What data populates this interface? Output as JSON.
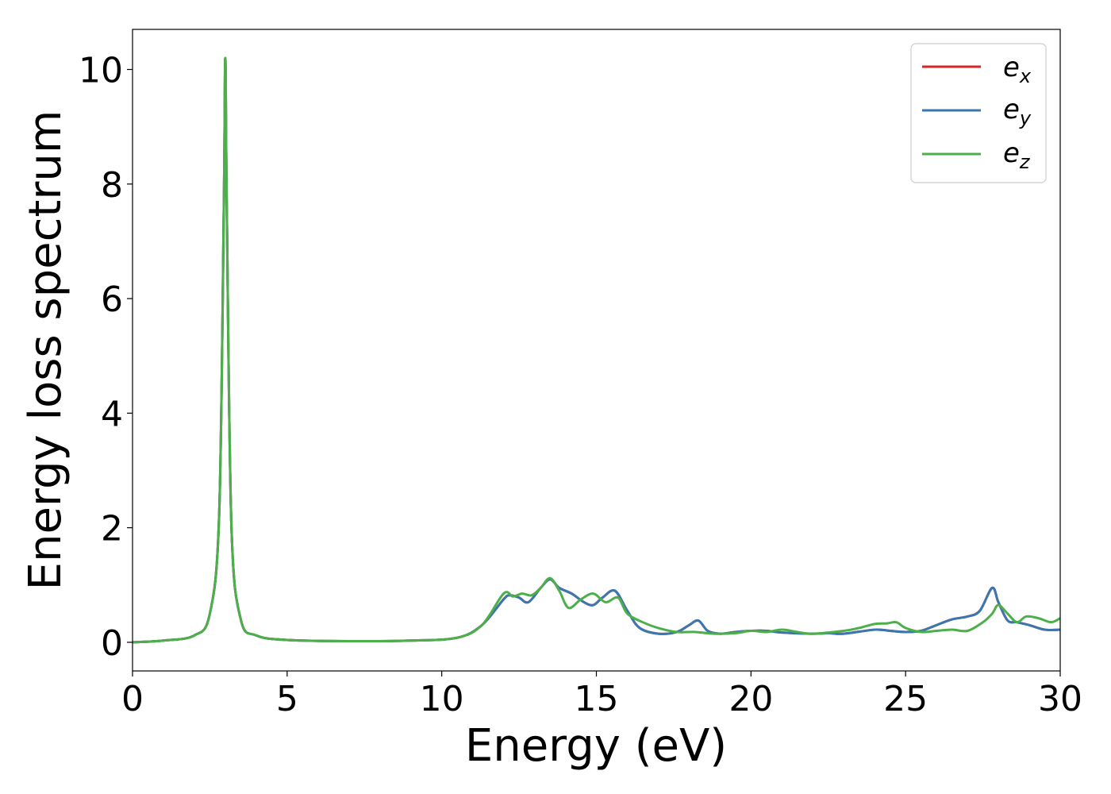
{
  "chart_data": {
    "type": "line",
    "title": "",
    "xlabel": "Energy (eV)",
    "ylabel": "Energy loss spectrum",
    "xlim": [
      0,
      30
    ],
    "ylim": [
      -0.5,
      10.7
    ],
    "xticks": [
      0,
      5,
      10,
      15,
      20,
      25,
      30
    ],
    "yticks": [
      0,
      2,
      4,
      6,
      8,
      10
    ],
    "grid": false,
    "legend_position": "top-right",
    "legend_labels": [
      {
        "base": "e",
        "sub": "x"
      },
      {
        "base": "e",
        "sub": "y"
      },
      {
        "base": "e",
        "sub": "z"
      }
    ],
    "series": [
      {
        "name": "e_x",
        "color": "#d62728",
        "x": [
          0,
          1,
          2,
          2.5,
          2.8,
          2.95,
          3.0,
          3.05,
          3.2,
          3.5,
          4,
          5,
          7,
          9,
          10.5,
          11.3,
          12.0,
          12.2,
          12.5,
          12.8,
          13.2,
          13.5,
          13.8,
          14.2,
          14.6,
          14.9,
          15.2,
          15.6,
          16.0,
          16.4,
          17.0,
          17.6,
          18.0,
          18.3,
          18.6,
          19.0,
          19.5,
          20.0,
          20.5,
          21.0,
          22.0,
          22.5,
          23.0,
          24.0,
          24.5,
          25.0,
          25.5,
          26.0,
          26.5,
          27.0,
          27.4,
          27.8,
          28.0,
          28.3,
          28.6,
          29.0,
          29.5,
          30.0
        ],
        "y": [
          0,
          0.03,
          0.12,
          0.5,
          2.2,
          7.5,
          10.2,
          7.5,
          2.0,
          0.4,
          0.12,
          0.04,
          0.02,
          0.03,
          0.08,
          0.3,
          0.75,
          0.82,
          0.78,
          0.7,
          0.95,
          1.1,
          0.95,
          0.85,
          0.7,
          0.65,
          0.78,
          0.9,
          0.55,
          0.25,
          0.15,
          0.18,
          0.3,
          0.38,
          0.2,
          0.15,
          0.18,
          0.2,
          0.2,
          0.17,
          0.15,
          0.16,
          0.15,
          0.22,
          0.2,
          0.18,
          0.2,
          0.3,
          0.4,
          0.45,
          0.55,
          0.95,
          0.7,
          0.38,
          0.35,
          0.3,
          0.22,
          0.22
        ]
      },
      {
        "name": "e_y",
        "color": "#3a76af",
        "x": [
          0,
          1,
          2,
          2.5,
          2.8,
          2.95,
          3.0,
          3.05,
          3.2,
          3.5,
          4,
          5,
          7,
          9,
          10.5,
          11.3,
          12.0,
          12.2,
          12.5,
          12.8,
          13.2,
          13.5,
          13.8,
          14.2,
          14.6,
          14.9,
          15.2,
          15.6,
          16.0,
          16.4,
          17.0,
          17.6,
          18.0,
          18.3,
          18.6,
          19.0,
          19.5,
          20.0,
          20.5,
          21.0,
          22.0,
          22.5,
          23.0,
          24.0,
          24.5,
          25.0,
          25.5,
          26.0,
          26.5,
          27.0,
          27.4,
          27.8,
          28.0,
          28.3,
          28.6,
          29.0,
          29.5,
          30.0
        ],
        "y": [
          0,
          0.03,
          0.12,
          0.5,
          2.2,
          7.5,
          10.2,
          7.5,
          2.0,
          0.4,
          0.12,
          0.04,
          0.02,
          0.03,
          0.08,
          0.3,
          0.75,
          0.82,
          0.78,
          0.7,
          0.95,
          1.1,
          0.95,
          0.85,
          0.7,
          0.65,
          0.78,
          0.9,
          0.55,
          0.25,
          0.15,
          0.18,
          0.3,
          0.38,
          0.2,
          0.15,
          0.18,
          0.2,
          0.2,
          0.17,
          0.15,
          0.16,
          0.15,
          0.22,
          0.2,
          0.18,
          0.2,
          0.3,
          0.4,
          0.45,
          0.55,
          0.95,
          0.7,
          0.38,
          0.35,
          0.3,
          0.22,
          0.22
        ]
      },
      {
        "name": "e_z",
        "color": "#4daf4a",
        "x": [
          0,
          1,
          2,
          2.5,
          2.8,
          2.95,
          3.0,
          3.05,
          3.2,
          3.5,
          4,
          5,
          7,
          9,
          10.5,
          11.3,
          12.0,
          12.3,
          12.6,
          12.9,
          13.2,
          13.5,
          13.8,
          14.1,
          14.5,
          14.9,
          15.3,
          15.7,
          16.0,
          16.5,
          17.0,
          17.6,
          18.2,
          18.8,
          19.5,
          20.0,
          20.5,
          21.0,
          21.5,
          22.0,
          23.0,
          23.5,
          24.0,
          24.4,
          24.7,
          25.0,
          25.5,
          26.0,
          26.5,
          27.0,
          27.5,
          27.8,
          28.0,
          28.3,
          28.6,
          28.9,
          29.3,
          29.7,
          30.0
        ],
        "y": [
          0,
          0.03,
          0.12,
          0.5,
          2.2,
          7.5,
          10.2,
          7.5,
          2.0,
          0.4,
          0.12,
          0.04,
          0.02,
          0.03,
          0.08,
          0.3,
          0.85,
          0.8,
          0.85,
          0.82,
          0.95,
          1.12,
          0.9,
          0.6,
          0.75,
          0.85,
          0.7,
          0.78,
          0.5,
          0.35,
          0.25,
          0.18,
          0.18,
          0.15,
          0.16,
          0.2,
          0.18,
          0.22,
          0.18,
          0.15,
          0.2,
          0.25,
          0.32,
          0.33,
          0.35,
          0.25,
          0.18,
          0.2,
          0.22,
          0.2,
          0.35,
          0.5,
          0.65,
          0.5,
          0.35,
          0.45,
          0.42,
          0.35,
          0.42
        ]
      }
    ]
  }
}
